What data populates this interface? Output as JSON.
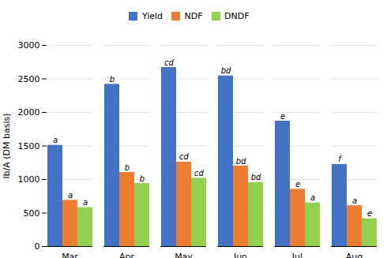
{
  "chart_data": {
    "type": "bar",
    "categories": [
      "Mar",
      "Apr",
      "May",
      "Jun",
      "Jul",
      "Aug"
    ],
    "series": [
      {
        "name": "Yield",
        "color": "#4472C4",
        "values": [
          1510,
          2420,
          2670,
          2545,
          1870,
          1225
        ],
        "labels": [
          "a",
          "b",
          "cd",
          "bd",
          "e",
          "f"
        ]
      },
      {
        "name": "NDF",
        "color": "#ED7D31",
        "values": [
          690,
          1105,
          1260,
          1200,
          855,
          610
        ],
        "labels": [
          "a",
          "b",
          "cd",
          "bd",
          "e",
          "a"
        ]
      },
      {
        "name": "DNDF",
        "color": "#92D050",
        "values": [
          580,
          940,
          1020,
          955,
          650,
          415
        ],
        "labels": [
          "a",
          "b",
          "cd",
          "bd",
          "a",
          "e"
        ]
      }
    ],
    "ylabel": "lb/A (DM basis)",
    "ylim": [
      0,
      3000
    ],
    "yticks": [
      0,
      500,
      1000,
      1500,
      2000,
      2500,
      3000
    ],
    "grid": true,
    "legend": "top"
  }
}
